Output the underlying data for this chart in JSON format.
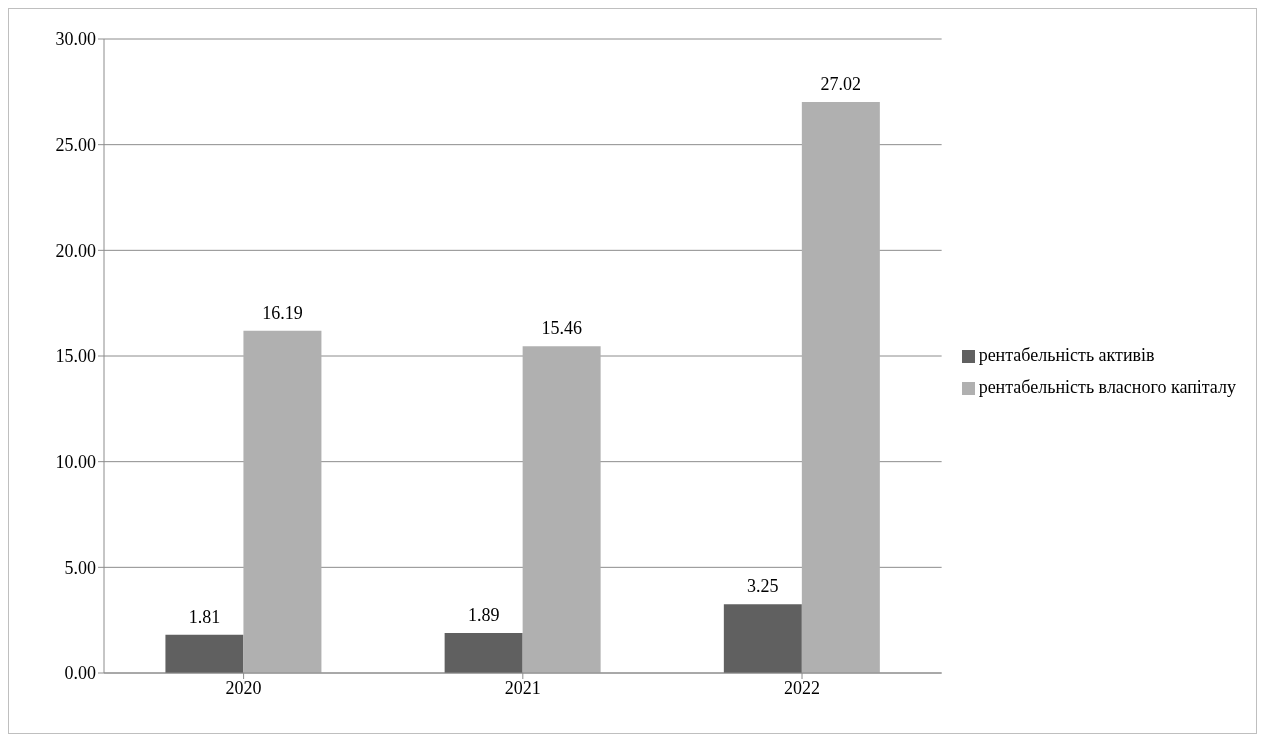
{
  "chart_data": {
    "type": "bar",
    "categories": [
      "2020",
      "2021",
      "2022"
    ],
    "series": [
      {
        "name": "рентабельність активів",
        "color": "#606060",
        "values": [
          1.81,
          1.89,
          3.25
        ]
      },
      {
        "name": "рентабельність власного капіталу",
        "color": "#b0b0b0",
        "values": [
          16.19,
          15.46,
          27.02
        ]
      }
    ],
    "ylim": [
      0,
      30
    ],
    "yticks": [
      {
        "value": 0,
        "label": "0.00"
      },
      {
        "value": 5,
        "label": "5.00"
      },
      {
        "value": 10,
        "label": "10.00"
      },
      {
        "value": 15,
        "label": "15.00"
      },
      {
        "value": 20,
        "label": "20.00"
      },
      {
        "value": 25,
        "label": "25.00"
      },
      {
        "value": 30,
        "label": "30.00"
      }
    ],
    "grid": "y",
    "legend": "right",
    "data_labels": true
  }
}
